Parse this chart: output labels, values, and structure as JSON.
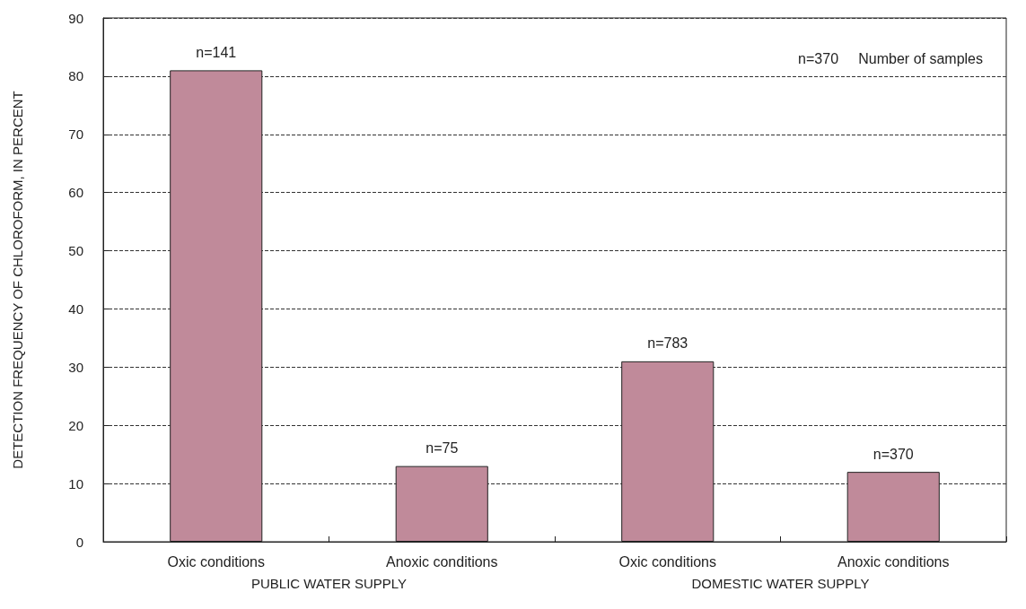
{
  "chart_data": {
    "type": "bar",
    "ylabel": "DETECTION FREQUENCY OF CHLOROFORM, IN PERCENT",
    "categories": [
      "Oxic conditions",
      "Anoxic conditions",
      "Oxic conditions",
      "Anoxic conditions"
    ],
    "values": [
      81,
      13,
      31,
      12
    ],
    "color": "#c08a9a",
    "annotations": [
      "n=370     Number of samples",
      "PUBLIC WATER SUPPLY",
      "DOMESTIC WATER SUPPLY",
      "n=141",
      "n=75",
      "n=783",
      "n=370"
    ],
    "ylim": [
      0,
      90
    ],
    "yticks": [
      0,
      10,
      20,
      30,
      40,
      50,
      60,
      70,
      80,
      90
    ],
    "grid": "y"
  }
}
